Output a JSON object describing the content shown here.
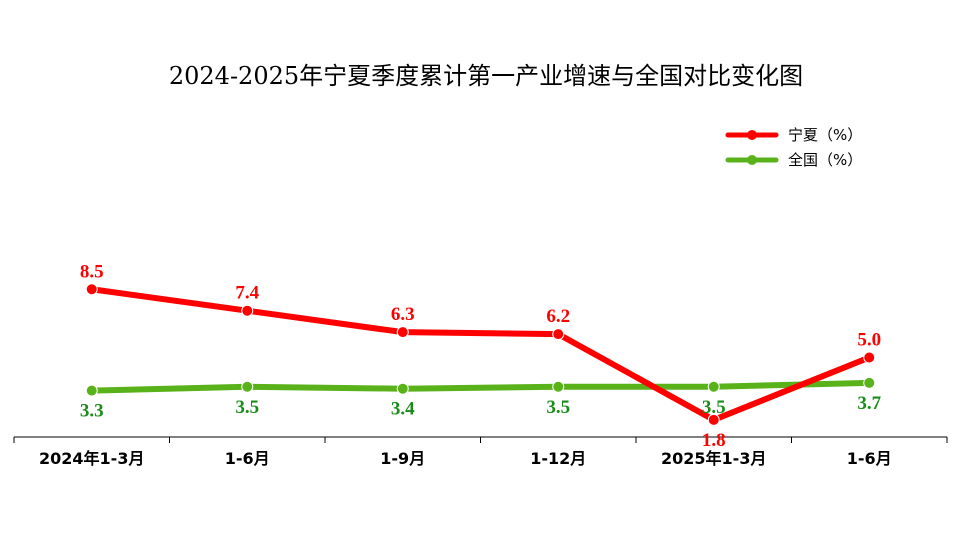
{
  "chart_data": {
    "type": "line",
    "title": "2024-2025年宁夏季度累计第一产业增速与全国对比变化图",
    "categories": [
      "2024年1-3月",
      "1-6月",
      "1-9月",
      "1-12月",
      "2025年1-3月",
      "1-6月"
    ],
    "series": [
      {
        "name": "宁夏（%）",
        "color": "#ff0000",
        "values": [
          8.5,
          7.4,
          6.3,
          6.2,
          1.8,
          5.0
        ],
        "labels": [
          "8.5",
          "7.4",
          "6.3",
          "6.2",
          "1.8",
          "5.0"
        ],
        "label_position": "above"
      },
      {
        "name": "全国（%）",
        "color": "#5ab21a",
        "label_color": "#1a8c1a",
        "values": [
          3.3,
          3.5,
          3.4,
          3.5,
          3.5,
          3.7
        ],
        "labels": [
          "3.3",
          "3.5",
          "3.4",
          "3.5",
          "3.5",
          "3.7"
        ],
        "label_position": "below"
      }
    ],
    "xlabel": "",
    "ylabel": "",
    "ylim": [
      0,
      10
    ],
    "grid": false,
    "legend": "top-right",
    "y_axis_visible": false
  }
}
